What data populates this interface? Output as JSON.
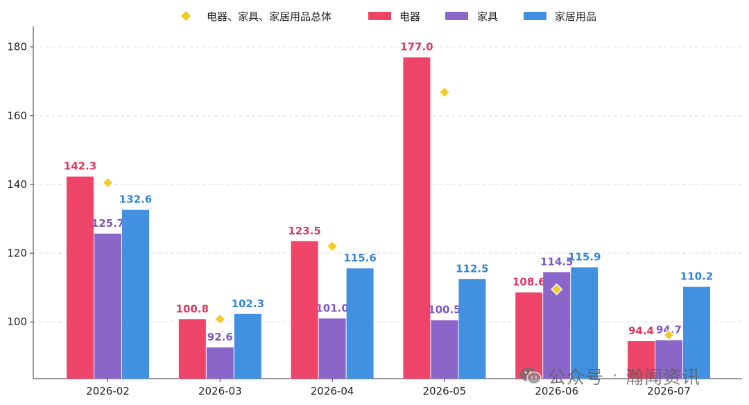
{
  "chart_data": {
    "type": "bar",
    "categories": [
      "2026-02",
      "2026-03",
      "2026-04",
      "2026-05",
      "2026-06",
      "2026-07"
    ],
    "series": [
      {
        "name": "电器",
        "color": "#ED4468",
        "label_color": "#DC3A5E",
        "values": [
          142.3,
          100.8,
          123.5,
          177.0,
          108.6,
          94.4
        ]
      },
      {
        "name": "家具",
        "color": "#8B66C9",
        "label_color": "#7E58C2",
        "values": [
          125.7,
          92.6,
          101.0,
          100.5,
          114.5,
          94.7
        ]
      },
      {
        "name": "家居用品",
        "color": "#4291E1",
        "label_color": "#3585D6",
        "values": [
          132.6,
          102.3,
          115.6,
          112.5,
          115.9,
          110.2
        ]
      }
    ],
    "total": {
      "name": "电器、家具、家居用品总体",
      "marker": "diamond",
      "color": "#F5C926",
      "values": [
        140.5,
        100.8,
        122.0,
        166.8,
        109.5,
        96.2
      ]
    },
    "ylim": [
      83.5,
      186
    ],
    "yticks": [
      100,
      120,
      140,
      160,
      180
    ],
    "grid": true,
    "legend_position": "top-center"
  },
  "watermark": {
    "icon": "wechat-icon",
    "text_left": "公众号",
    "separator": "·",
    "text_right": "瀚闻资讯"
  }
}
